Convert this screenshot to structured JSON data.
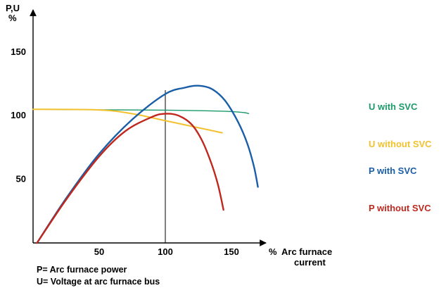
{
  "chart_data": {
    "type": "line",
    "ylabel": "P,U\n%",
    "xlabel_unit": "%",
    "xlabel": "Arc furnace\ncurrent",
    "xlim": [
      0,
      180
    ],
    "ylim": [
      0,
      165
    ],
    "x_ticks": [
      50,
      100,
      150
    ],
    "y_ticks": [
      50,
      100,
      150
    ],
    "vertical_marker_x": 100,
    "grid": false,
    "legend_placement": "right",
    "series": [
      {
        "name": "U with SVC",
        "color": "#1a9a6a",
        "points": [
          [
            0,
            105
          ],
          [
            50,
            104.6
          ],
          [
            100,
            104.3
          ],
          [
            130,
            103.8
          ],
          [
            150,
            103.2
          ],
          [
            160,
            102.3
          ],
          [
            163,
            101.6
          ]
        ]
      },
      {
        "name": "U without SVC",
        "color": "#f2c12e",
        "points": [
          [
            0,
            105
          ],
          [
            50,
            104.5
          ],
          [
            75,
            101.5
          ],
          [
            100,
            96
          ],
          [
            125,
            90.5
          ],
          [
            143,
            86.5
          ]
        ]
      },
      {
        "name": "P with SVC",
        "color": "#1a5ea8",
        "points": [
          [
            3,
            0
          ],
          [
            25,
            35
          ],
          [
            50,
            70
          ],
          [
            75,
            97
          ],
          [
            100,
            117
          ],
          [
            115,
            122
          ],
          [
            125,
            123.5
          ],
          [
            135,
            121
          ],
          [
            145,
            112
          ],
          [
            155,
            95
          ],
          [
            162,
            78
          ],
          [
            167,
            60
          ],
          [
            170,
            44
          ]
        ]
      },
      {
        "name": "P without SVC",
        "color": "#c0281e",
        "points": [
          [
            3,
            0
          ],
          [
            25,
            34
          ],
          [
            50,
            68
          ],
          [
            70,
            88
          ],
          [
            90,
            99
          ],
          [
            100,
            101.5
          ],
          [
            110,
            100
          ],
          [
            120,
            93
          ],
          [
            128,
            80
          ],
          [
            135,
            62
          ],
          [
            140,
            45
          ],
          [
            144,
            26
          ]
        ]
      }
    ]
  },
  "notes": {
    "p_def": "P= Arc furnace power",
    "u_def": "U= Voltage at arc furnace bus"
  }
}
